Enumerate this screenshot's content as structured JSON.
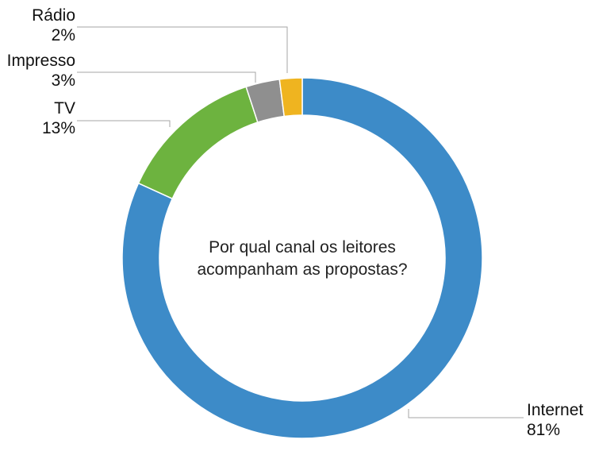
{
  "chart_data": {
    "type": "pie",
    "variant": "donut",
    "title_lines": [
      "Por qual canal os leitores",
      "acompanham as propostas?"
    ],
    "slices": [
      {
        "label": "Internet",
        "value": 81,
        "value_label": "81%",
        "color": "#3d8bc8"
      },
      {
        "label": "TV",
        "value": 13,
        "value_label": "13%",
        "color": "#6db33f"
      },
      {
        "label": "Impresso",
        "value": 3,
        "value_label": "3%",
        "color": "#8f8f8f"
      },
      {
        "label": "Rádio",
        "value": 2,
        "value_label": "2%",
        "color": "#efb420"
      }
    ],
    "legend": "none",
    "label_placement": "outside with leader lines"
  }
}
